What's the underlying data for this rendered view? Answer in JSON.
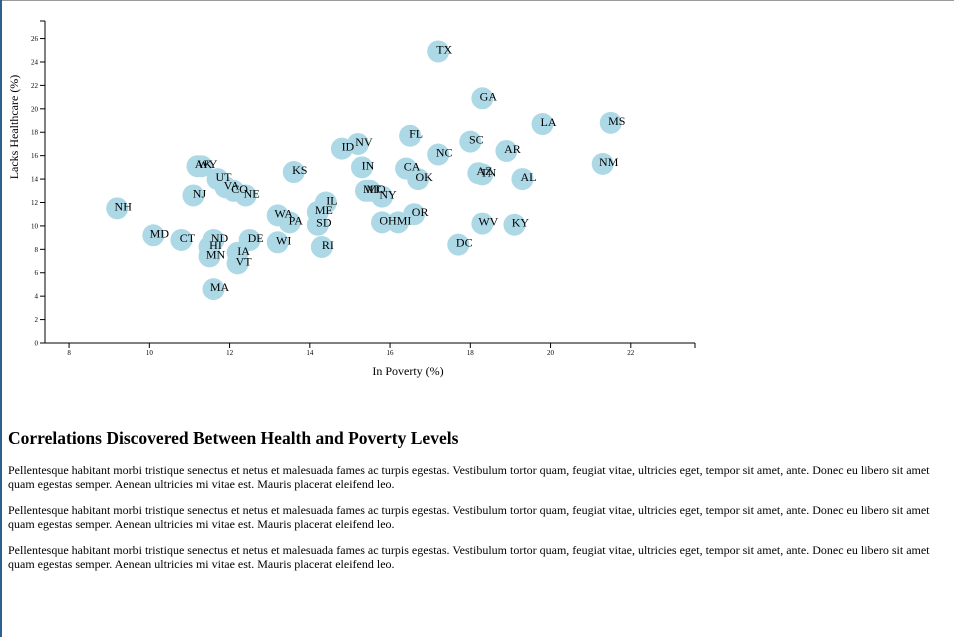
{
  "chart_data": {
    "type": "scatter",
    "title": "",
    "xlabel": "In Poverty (%)",
    "ylabel": "Lacks Healthcare (%)",
    "xlim": [
      7.4,
      23.6
    ],
    "ylim": [
      0,
      27.5
    ],
    "xticks": [
      "8",
      "10",
      "12",
      "14",
      "16",
      "18",
      "20",
      "22"
    ],
    "yticks": [
      "0",
      "2",
      "4",
      "6",
      "8",
      "10",
      "12",
      "14",
      "16",
      "18",
      "20",
      "22",
      "24",
      "26"
    ],
    "grid": false,
    "marker_color": "#add8e6",
    "points": [
      {
        "label": "TX",
        "x": 17.2,
        "y": 24.9
      },
      {
        "label": "GA",
        "x": 18.3,
        "y": 20.9
      },
      {
        "label": "LA",
        "x": 19.8,
        "y": 18.7
      },
      {
        "label": "MS",
        "x": 21.5,
        "y": 18.8
      },
      {
        "label": "FL",
        "x": 16.5,
        "y": 17.7
      },
      {
        "label": "NV",
        "x": 15.2,
        "y": 17.0
      },
      {
        "label": "SC",
        "x": 18.0,
        "y": 17.2
      },
      {
        "label": "ID",
        "x": 14.8,
        "y": 16.6
      },
      {
        "label": "AR",
        "x": 18.9,
        "y": 16.4
      },
      {
        "label": "NC",
        "x": 17.2,
        "y": 16.1
      },
      {
        "label": "NM",
        "x": 21.3,
        "y": 15.3
      },
      {
        "label": "AK",
        "x": 11.2,
        "y": 15.1
      },
      {
        "label": "WY",
        "x": 11.3,
        "y": 15.1
      },
      {
        "label": "IN",
        "x": 15.3,
        "y": 15.0
      },
      {
        "label": "CA",
        "x": 16.4,
        "y": 14.9
      },
      {
        "label": "KS",
        "x": 13.6,
        "y": 14.6
      },
      {
        "label": "AZ",
        "x": 18.2,
        "y": 14.5
      },
      {
        "label": "TN",
        "x": 18.3,
        "y": 14.4
      },
      {
        "label": "UT",
        "x": 11.7,
        "y": 14.0
      },
      {
        "label": "OK",
        "x": 16.7,
        "y": 14.0
      },
      {
        "label": "AL",
        "x": 19.3,
        "y": 14.0
      },
      {
        "label": "VA",
        "x": 11.9,
        "y": 13.3
      },
      {
        "label": "CO",
        "x": 12.1,
        "y": 13.0
      },
      {
        "label": "MO",
        "x": 15.5,
        "y": 13.0
      },
      {
        "label": "MT",
        "x": 15.4,
        "y": 13.0
      },
      {
        "label": "NE",
        "x": 12.4,
        "y": 12.6
      },
      {
        "label": "NJ",
        "x": 11.1,
        "y": 12.6
      },
      {
        "label": "NY",
        "x": 15.8,
        "y": 12.5
      },
      {
        "label": "IL",
        "x": 14.4,
        "y": 12.0
      },
      {
        "label": "NH",
        "x": 9.2,
        "y": 11.5
      },
      {
        "label": "ME",
        "x": 14.2,
        "y": 11.2
      },
      {
        "label": "OR",
        "x": 16.6,
        "y": 11.0
      },
      {
        "label": "WA",
        "x": 13.2,
        "y": 10.9
      },
      {
        "label": "PA",
        "x": 13.5,
        "y": 10.3
      },
      {
        "label": "OH",
        "x": 15.8,
        "y": 10.3
      },
      {
        "label": "MI",
        "x": 16.2,
        "y": 10.3
      },
      {
        "label": "WV",
        "x": 18.3,
        "y": 10.2
      },
      {
        "label": "SD",
        "x": 14.2,
        "y": 10.1
      },
      {
        "label": "KY",
        "x": 19.1,
        "y": 10.1
      },
      {
        "label": "MD",
        "x": 10.1,
        "y": 9.2
      },
      {
        "label": "CT",
        "x": 10.8,
        "y": 8.8
      },
      {
        "label": "DE",
        "x": 12.5,
        "y": 8.8
      },
      {
        "label": "ND",
        "x": 11.6,
        "y": 8.8
      },
      {
        "label": "WI",
        "x": 13.2,
        "y": 8.6
      },
      {
        "label": "DC",
        "x": 17.7,
        "y": 8.4
      },
      {
        "label": "HI",
        "x": 11.5,
        "y": 8.2
      },
      {
        "label": "RI",
        "x": 14.3,
        "y": 8.2
      },
      {
        "label": "IA",
        "x": 12.2,
        "y": 7.7
      },
      {
        "label": "MN",
        "x": 11.5,
        "y": 7.4
      },
      {
        "label": "VT",
        "x": 12.2,
        "y": 6.8
      },
      {
        "label": "MA",
        "x": 11.6,
        "y": 4.6
      }
    ]
  },
  "article": {
    "heading": "Correlations Discovered Between Health and Poverty Levels",
    "paragraphs": [
      "Pellentesque habitant morbi tristique senectus et netus et malesuada fames ac turpis egestas. Vestibulum tortor quam, feugiat vitae, ultricies eget, tempor sit amet, ante. Donec eu libero sit amet quam egestas semper. Aenean ultricies mi vitae est. Mauris placerat eleifend leo.",
      "Pellentesque habitant morbi tristique senectus et netus et malesuada fames ac turpis egestas. Vestibulum tortor quam, feugiat vitae, ultricies eget, tempor sit amet, ante. Donec eu libero sit amet quam egestas semper. Aenean ultricies mi vitae est. Mauris placerat eleifend leo.",
      "Pellentesque habitant morbi tristique senectus et netus et malesuada fames ac turpis egestas. Vestibulum tortor quam, feugiat vitae, ultricies eget, tempor sit amet, ante. Donec eu libero sit amet quam egestas semper. Aenean ultricies mi vitae est. Mauris placerat eleifend leo."
    ]
  }
}
